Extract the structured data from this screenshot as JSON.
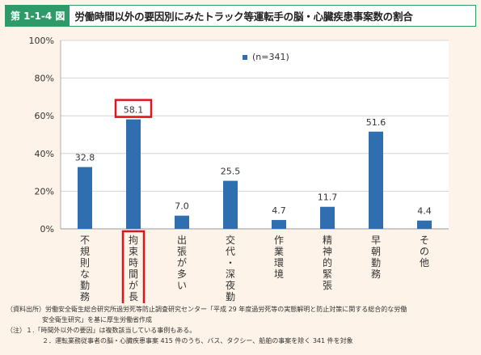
{
  "header": {
    "fig_label": "第 1-1-4 図",
    "title": "労働時間以外の要因別にみたトラック等運転手の脳・心臓疾患事案数の割合"
  },
  "chart_data": {
    "type": "bar",
    "categories": [
      "不規則な勤務",
      "拘束時間が長い",
      "出張が多い",
      "交代・深夜勤務",
      "作業環境",
      "精神的緊張",
      "早朝勤務",
      "その他"
    ],
    "series": [
      {
        "name": "(n=341)",
        "values": [
          32.8,
          58.1,
          7.0,
          25.5,
          4.7,
          11.7,
          51.6,
          4.4
        ]
      }
    ],
    "value_labels": [
      "32.8",
      "58.1",
      "7.0",
      "25.5",
      "4.7",
      "11.7",
      "51.6",
      "4.4"
    ],
    "ylim": [
      0,
      100
    ],
    "yticks": [
      "0%",
      "20%",
      "40%",
      "60%",
      "80%",
      "100%"
    ],
    "ytick_values": [
      0,
      20,
      40,
      60,
      80,
      100
    ],
    "highlight_index": 1,
    "grid": true,
    "legend_position": "top-right",
    "bar_color": "#2f6fb0",
    "highlight_color": "#e0141d"
  },
  "notes": {
    "source": "（資料出所）労働安全衛生総合研究所過労死等防止調査研究センター「平成 29 年度過労死等の実態解明と防止対策に関する総合的な労働",
    "source_cont": "安全衛生研究」を基に厚生労働省作成",
    "note1": "（注）１.「時間外以外の要因」は複数該当している事例もある。",
    "note2": "２．運転業務従事者の脳・心臓疾患事案 415 件のうち、バス、タクシー、船舶の事案を除く 341 件を対象"
  }
}
